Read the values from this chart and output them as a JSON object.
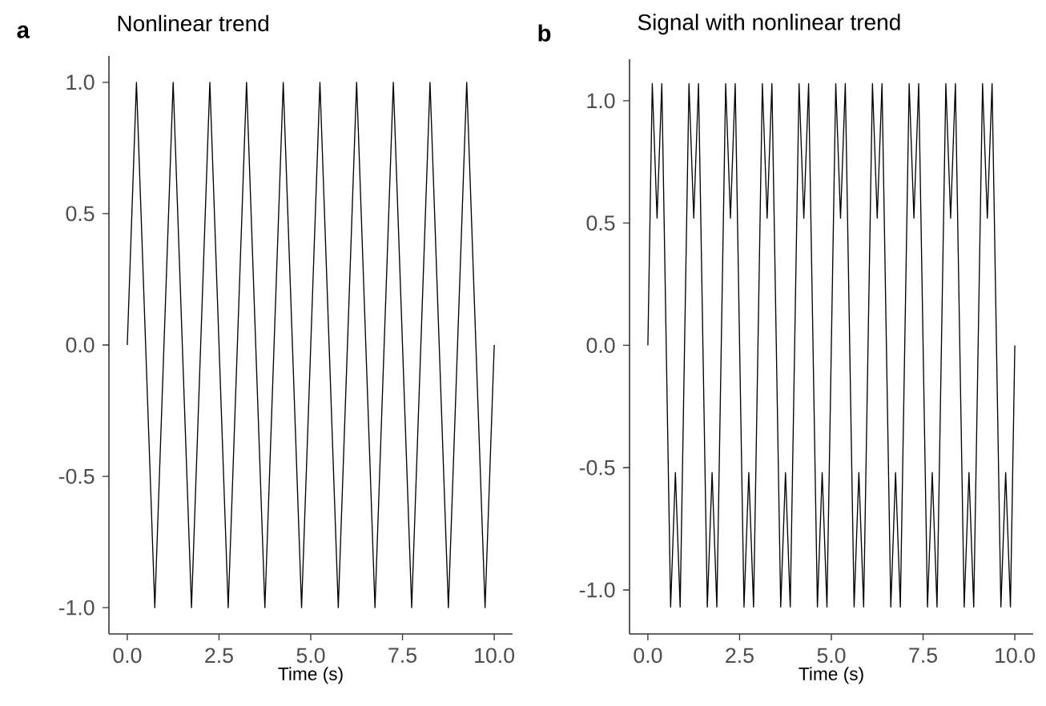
{
  "chart_data": [
    {
      "type": "line",
      "title": "Nonlinear trend",
      "xlabel": "Time (s)",
      "annotations": [
        "a"
      ],
      "color": "#000000",
      "x": [
        0,
        0.25,
        0.5,
        0.75,
        1,
        1.25,
        1.5,
        1.75,
        2,
        2.25,
        2.5,
        2.75,
        3,
        3.25,
        3.5,
        3.75,
        4,
        4.25,
        4.5,
        4.75,
        5,
        5.25,
        5.5,
        5.75,
        6,
        6.25,
        6.5,
        6.75,
        7,
        7.25,
        7.5,
        7.75,
        8,
        8.25,
        8.5,
        8.75,
        9,
        9.25,
        9.5,
        9.75,
        10
      ],
      "values": [
        0,
        1,
        0,
        -1,
        0,
        1,
        0,
        -1,
        0,
        1,
        0,
        -1,
        0,
        1,
        0,
        -1,
        0,
        1,
        0,
        -1,
        0,
        1,
        0,
        -1,
        0,
        1,
        0,
        -1,
        0,
        1,
        0,
        -1,
        0,
        1,
        0,
        -1,
        0,
        1,
        0,
        -1,
        0
      ],
      "xlim": [
        -0.5,
        10.5
      ],
      "ylim": [
        -1.1,
        1.1
      ],
      "xticks": [
        {
          "value": 0,
          "label": "0.0"
        },
        {
          "value": 2.5,
          "label": "2.5"
        },
        {
          "value": 5,
          "label": "5.0"
        },
        {
          "value": 7.5,
          "label": "7.5"
        },
        {
          "value": 10,
          "label": "10.0"
        }
      ],
      "yticks": [
        {
          "value": -1,
          "label": "-1.0"
        },
        {
          "value": -0.5,
          "label": "-0.5"
        },
        {
          "value": 0,
          "label": "0.0"
        },
        {
          "value": 0.5,
          "label": "0.5"
        },
        {
          "value": 1,
          "label": "1.0"
        }
      ]
    },
    {
      "type": "line",
      "title": "Signal with nonlinear trend",
      "xlabel": "Time (s)",
      "annotations": [
        "b"
      ],
      "color": "#000000",
      "x": [
        0,
        0.12,
        0.25,
        0.38,
        0.5,
        0.62,
        0.75,
        0.88,
        1,
        1.12,
        1.25,
        1.38,
        1.5,
        1.62,
        1.75,
        1.88,
        2,
        2.12,
        2.25,
        2.38,
        2.5,
        2.62,
        2.75,
        2.88,
        3,
        3.12,
        3.25,
        3.38,
        3.5,
        3.62,
        3.75,
        3.88,
        4,
        4.12,
        4.25,
        4.38,
        4.5,
        4.62,
        4.75,
        4.88,
        5,
        5.12,
        5.25,
        5.38,
        5.5,
        5.62,
        5.75,
        5.88,
        6,
        6.12,
        6.25,
        6.38,
        6.5,
        6.62,
        6.75,
        6.88,
        7,
        7.12,
        7.25,
        7.38,
        7.5,
        7.62,
        7.75,
        7.88,
        8,
        8.12,
        8.25,
        8.38,
        8.5,
        8.62,
        8.75,
        8.88,
        9,
        9.12,
        9.25,
        9.38,
        9.5,
        9.62,
        9.75,
        9.88,
        10
      ],
      "values": [
        0,
        1.07,
        0.52,
        1.07,
        0,
        -1.07,
        -0.52,
        -1.07,
        0,
        1.07,
        0.52,
        1.07,
        0,
        -1.07,
        -0.52,
        -1.07,
        0,
        1.07,
        0.52,
        1.07,
        0,
        -1.07,
        -0.52,
        -1.07,
        0,
        1.07,
        0.52,
        1.07,
        0,
        -1.07,
        -0.52,
        -1.07,
        0,
        1.07,
        0.52,
        1.07,
        0,
        -1.07,
        -0.52,
        -1.07,
        0,
        1.07,
        0.52,
        1.07,
        0,
        -1.07,
        -0.52,
        -1.07,
        0,
        1.07,
        0.52,
        1.07,
        0,
        -1.07,
        -0.52,
        -1.07,
        0,
        1.07,
        0.52,
        1.07,
        0,
        -1.07,
        -0.52,
        -1.07,
        0,
        1.07,
        0.52,
        1.07,
        0,
        -1.07,
        -0.52,
        -1.07,
        0,
        1.07,
        0.52,
        1.07,
        0,
        -1.07,
        -0.52,
        -1.07,
        0
      ],
      "xlim": [
        -0.5,
        10.5
      ],
      "ylim": [
        -1.18,
        1.17
      ],
      "xticks": [
        {
          "value": 0,
          "label": "0.0"
        },
        {
          "value": 2.5,
          "label": "2.5"
        },
        {
          "value": 5,
          "label": "5.0"
        },
        {
          "value": 7.5,
          "label": "7.5"
        },
        {
          "value": 10,
          "label": "10.0"
        }
      ],
      "yticks": [
        {
          "value": -1,
          "label": "-1.0"
        },
        {
          "value": -0.5,
          "label": "-0.5"
        },
        {
          "value": 0,
          "label": "0.0"
        },
        {
          "value": 0.5,
          "label": "0.5"
        },
        {
          "value": 1,
          "label": "1.0"
        }
      ]
    }
  ]
}
